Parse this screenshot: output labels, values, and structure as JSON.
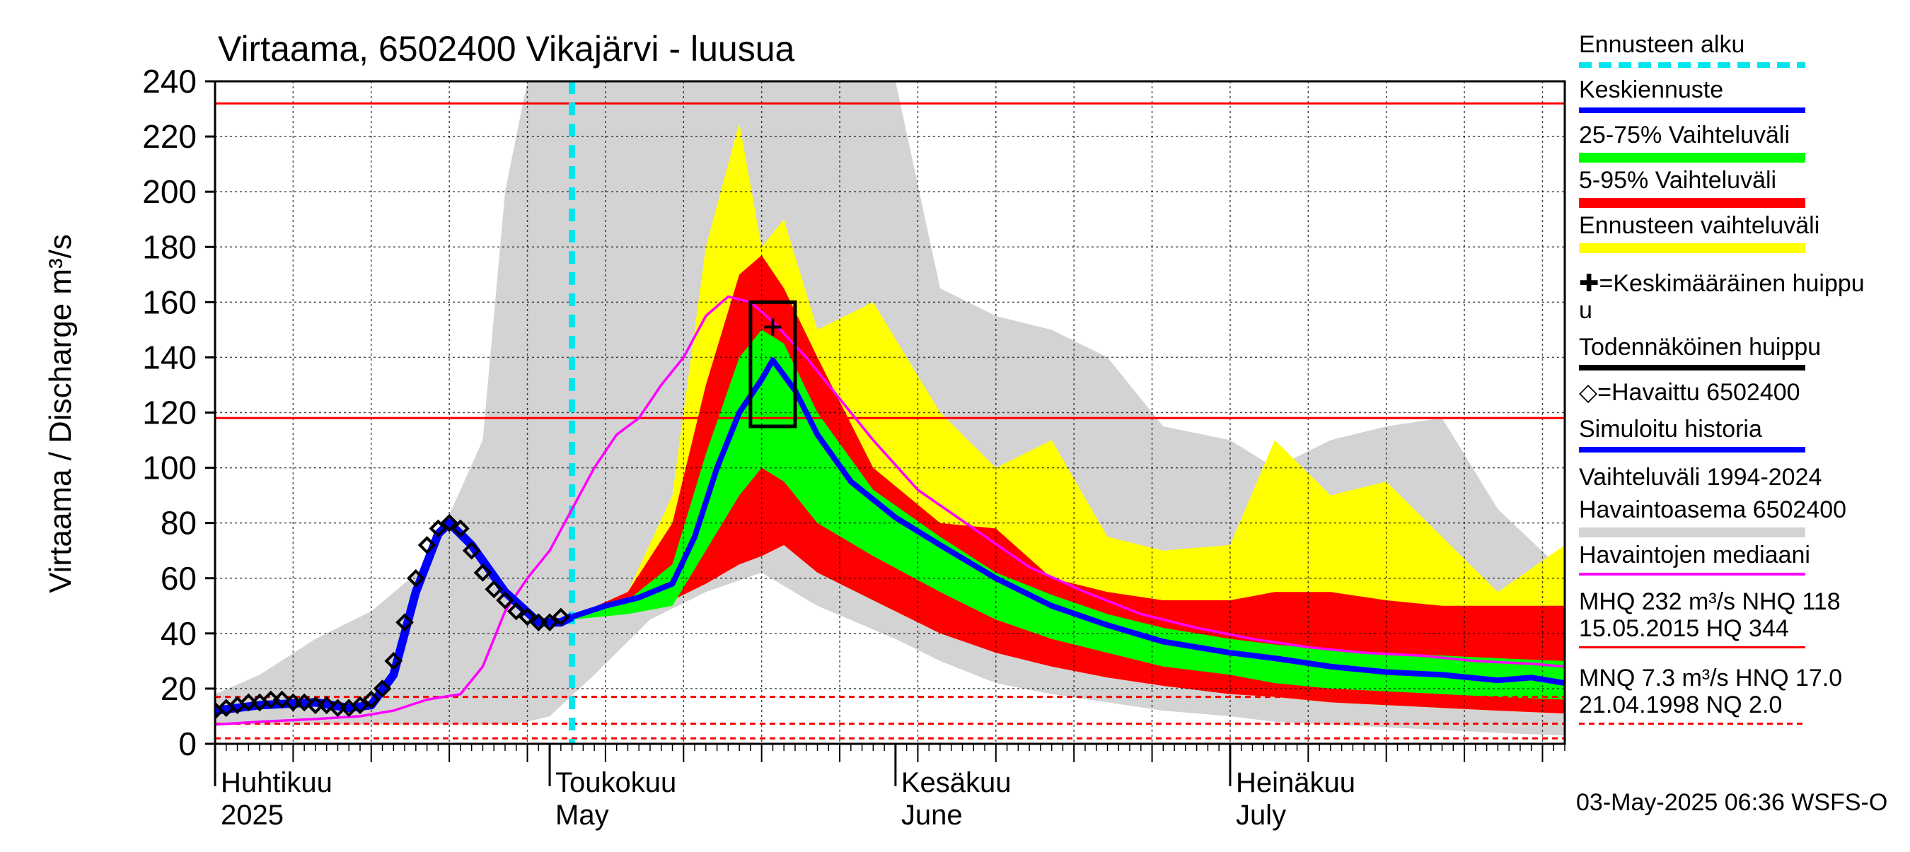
{
  "chart_data": {
    "type": "area",
    "title": "Virtaama, 6502400 Vikajärvi - luusua",
    "ylabel": "Virtaama / Discharge    m³/s",
    "ylim": [
      0,
      240
    ],
    "yticks": [
      0,
      20,
      40,
      60,
      80,
      100,
      120,
      140,
      160,
      180,
      200,
      220,
      240
    ],
    "x_range": [
      "2025-04-01",
      "2025-07-31"
    ],
    "month_labels": [
      {
        "fi": "Huhtikuu",
        "en": "2025",
        "date": "2025-04-01"
      },
      {
        "fi": "Toukokuu",
        "en": "May",
        "date": "2025-05-01"
      },
      {
        "fi": "Kesäkuu",
        "en": "June",
        "date": "2025-06-01"
      },
      {
        "fi": "Heinäkuu",
        "en": "July",
        "date": "2025-07-01"
      }
    ],
    "forecast_start": "2025-05-03",
    "reference_lines": {
      "MHQ": 232,
      "NHQ": 118,
      "HQ": 344,
      "MNQ": 7.3,
      "HNQ": 17.0,
      "NQ": 2.0
    },
    "probable_peak_box": {
      "x0": "2025-05-19",
      "x1": "2025-05-23",
      "y0": 115,
      "y1": 160
    },
    "mean_peak": {
      "x": "2025-05-21",
      "y": 151
    },
    "range_1994_2024": {
      "x": [
        "2025-04-01",
        "2025-04-05",
        "2025-04-10",
        "2025-04-15",
        "2025-04-20",
        "2025-04-25",
        "2025-04-27",
        "2025-04-29",
        "2025-05-01",
        "2025-05-05",
        "2025-05-10",
        "2025-05-15",
        "2025-05-20",
        "2025-05-25",
        "2025-06-01",
        "2025-06-05",
        "2025-06-10",
        "2025-06-15",
        "2025-06-20",
        "2025-06-25",
        "2025-07-01",
        "2025-07-05",
        "2025-07-10",
        "2025-07-15",
        "2025-07-20",
        "2025-07-25",
        "2025-07-31"
      ],
      "upper": [
        18,
        25,
        38,
        48,
        65,
        110,
        200,
        240,
        240,
        240,
        240,
        240,
        240,
        240,
        240,
        165,
        155,
        150,
        140,
        115,
        110,
        100,
        110,
        115,
        118,
        85,
        62
      ],
      "lower": [
        7,
        7,
        7,
        7,
        7,
        7,
        7,
        8,
        10,
        25,
        45,
        55,
        62,
        50,
        38,
        30,
        22,
        18,
        15,
        12,
        10,
        8,
        7,
        6,
        5,
        4,
        3
      ]
    },
    "forecast_range": {
      "x": [
        "2025-05-03",
        "2025-05-08",
        "2025-05-12",
        "2025-05-15",
        "2025-05-18",
        "2025-05-20",
        "2025-05-22",
        "2025-05-25",
        "2025-05-30",
        "2025-06-05",
        "2025-06-10",
        "2025-06-15",
        "2025-06-20",
        "2025-06-25",
        "2025-07-01",
        "2025-07-05",
        "2025-07-10",
        "2025-07-15",
        "2025-07-20",
        "2025-07-25",
        "2025-07-31"
      ],
      "upper": [
        46,
        55,
        90,
        180,
        225,
        180,
        190,
        150,
        160,
        120,
        100,
        110,
        75,
        70,
        72,
        110,
        90,
        95,
        75,
        55,
        72
      ],
      "lower": [
        45,
        48,
        55,
        62,
        68,
        70,
        72,
        65,
        55,
        42,
        35,
        30,
        25,
        22,
        19,
        17,
        15,
        14,
        13,
        12,
        11
      ]
    },
    "band_5_95": {
      "x": [
        "2025-05-03",
        "2025-05-08",
        "2025-05-12",
        "2025-05-15",
        "2025-05-18",
        "2025-05-20",
        "2025-05-22",
        "2025-05-25",
        "2025-05-30",
        "2025-06-05",
        "2025-06-10",
        "2025-06-15",
        "2025-06-20",
        "2025-06-25",
        "2025-07-01",
        "2025-07-05",
        "2025-07-10",
        "2025-07-15",
        "2025-07-20",
        "2025-07-25",
        "2025-07-31"
      ],
      "upper": [
        46,
        55,
        80,
        130,
        170,
        177,
        165,
        140,
        100,
        80,
        78,
        60,
        55,
        52,
        52,
        55,
        55,
        52,
        50,
        50,
        50
      ],
      "lower": [
        45,
        48,
        52,
        58,
        65,
        68,
        72,
        62,
        52,
        40,
        33,
        28,
        24,
        21,
        18,
        17,
        15,
        14,
        13,
        12,
        11
      ]
    },
    "band_25_75": {
      "x": [
        "2025-05-03",
        "2025-05-08",
        "2025-05-12",
        "2025-05-15",
        "2025-05-18",
        "2025-05-20",
        "2025-05-22",
        "2025-05-25",
        "2025-05-30",
        "2025-06-05",
        "2025-06-10",
        "2025-06-15",
        "2025-06-20",
        "2025-06-25",
        "2025-07-01",
        "2025-07-05",
        "2025-07-10",
        "2025-07-15",
        "2025-07-20",
        "2025-07-25",
        "2025-07-31"
      ],
      "upper": [
        46,
        52,
        65,
        105,
        140,
        150,
        145,
        120,
        92,
        75,
        62,
        54,
        47,
        42,
        38,
        36,
        34,
        33,
        32,
        31,
        30
      ],
      "lower": [
        45,
        47,
        50,
        70,
        90,
        100,
        95,
        80,
        68,
        55,
        45,
        38,
        33,
        28,
        25,
        22,
        20,
        19,
        18,
        17,
        16
      ]
    },
    "series": [
      {
        "name": "Keskiennuste",
        "color": "#0000ff",
        "x": [
          "2025-05-03",
          "2025-05-06",
          "2025-05-09",
          "2025-05-12",
          "2025-05-14",
          "2025-05-16",
          "2025-05-18",
          "2025-05-20",
          "2025-05-21",
          "2025-05-23",
          "2025-05-25",
          "2025-05-28",
          "2025-06-01",
          "2025-06-05",
          "2025-06-10",
          "2025-06-15",
          "2025-06-20",
          "2025-06-25",
          "2025-07-01",
          "2025-07-05",
          "2025-07-10",
          "2025-07-15",
          "2025-07-20",
          "2025-07-25",
          "2025-07-28",
          "2025-07-31"
        ],
        "y": [
          46,
          50,
          53,
          58,
          75,
          100,
          120,
          132,
          139,
          128,
          112,
          95,
          82,
          72,
          60,
          50,
          43,
          37,
          33,
          31,
          28,
          26,
          25,
          23,
          24,
          22
        ]
      },
      {
        "name": "Havaittu 6502400",
        "color": "#000000",
        "x": [
          "2025-04-01",
          "2025-04-02",
          "2025-04-03",
          "2025-04-04",
          "2025-04-05",
          "2025-04-06",
          "2025-04-07",
          "2025-04-08",
          "2025-04-09",
          "2025-04-10",
          "2025-04-11",
          "2025-04-12",
          "2025-04-13",
          "2025-04-14",
          "2025-04-15",
          "2025-04-16",
          "2025-04-17",
          "2025-04-18",
          "2025-04-19",
          "2025-04-20",
          "2025-04-21",
          "2025-04-22",
          "2025-04-23",
          "2025-04-24",
          "2025-04-25",
          "2025-04-26",
          "2025-04-27",
          "2025-04-28",
          "2025-04-29",
          "2025-04-30",
          "2025-05-01",
          "2025-05-02"
        ],
        "y": [
          12,
          13,
          14,
          15,
          15,
          16,
          16,
          15,
          15,
          14,
          14,
          13,
          13,
          14,
          16,
          20,
          30,
          44,
          60,
          72,
          78,
          80,
          78,
          70,
          62,
          56,
          52,
          48,
          46,
          44,
          44,
          46
        ]
      },
      {
        "name": "Simuloitu historia",
        "color": "#0000ff",
        "x": [
          "2025-04-01",
          "2025-04-05",
          "2025-04-10",
          "2025-04-13",
          "2025-04-15",
          "2025-04-17",
          "2025-04-19",
          "2025-04-21",
          "2025-04-22",
          "2025-04-24",
          "2025-04-27",
          "2025-04-30",
          "2025-05-02",
          "2025-05-03"
        ],
        "y": [
          12,
          14,
          15,
          13,
          14,
          25,
          55,
          76,
          80,
          72,
          55,
          44,
          44,
          46
        ]
      },
      {
        "name": "Havaintojen mediaani",
        "color": "#ff00ff",
        "x": [
          "2025-04-01",
          "2025-04-05",
          "2025-04-10",
          "2025-04-14",
          "2025-04-17",
          "2025-04-20",
          "2025-04-23",
          "2025-04-25",
          "2025-04-27",
          "2025-04-29",
          "2025-05-01",
          "2025-05-03",
          "2025-05-05",
          "2025-05-07",
          "2025-05-09",
          "2025-05-11",
          "2025-05-13",
          "2025-05-15",
          "2025-05-17",
          "2025-05-19",
          "2025-05-21",
          "2025-05-24",
          "2025-05-27",
          "2025-05-30",
          "2025-06-03",
          "2025-06-08",
          "2025-06-13",
          "2025-06-18",
          "2025-06-23",
          "2025-06-28",
          "2025-07-03",
          "2025-07-08",
          "2025-07-13",
          "2025-07-18",
          "2025-07-23",
          "2025-07-28",
          "2025-07-31"
        ],
        "y": [
          7,
          8,
          9,
          10,
          12,
          16,
          18,
          28,
          48,
          60,
          70,
          85,
          100,
          112,
          118,
          130,
          140,
          155,
          162,
          160,
          153,
          140,
          125,
          110,
          92,
          78,
          64,
          55,
          47,
          42,
          38,
          35,
          33,
          32,
          30,
          29,
          28
        ]
      }
    ],
    "legend": [
      {
        "label": "Ennusteen alku",
        "color": "#00e5ee",
        "style": "dashed"
      },
      {
        "label": "Keskiennuste",
        "color": "#0000ff",
        "style": "line"
      },
      {
        "label": "25-75% Vaihteluväli",
        "color": "#00ff00",
        "style": "band"
      },
      {
        "label": "5-95% Vaihteluväli",
        "color": "#ff0000",
        "style": "band"
      },
      {
        "label": "Ennusteen vaihteluväli",
        "color": "#ffff00",
        "style": "band"
      },
      {
        "label": "✚=Keskimääräinen huippu",
        "color": "#000000",
        "style": "none"
      },
      {
        "label": "u",
        "color": "#000000",
        "style": "none"
      },
      {
        "label": "Todennäköinen huippu",
        "color": "#000000",
        "style": "line"
      },
      {
        "label": "◇=Havaittu 6502400",
        "color": "#000000",
        "style": "none"
      },
      {
        "label": "Simuloitu historia",
        "color": "#0000ff",
        "style": "line"
      },
      {
        "label": "Vaihteluväli 1994-2024",
        "color": "#d3d3d3",
        "style": "none"
      },
      {
        "label": " Havaintoasema 6502400",
        "color": "#d3d3d3",
        "style": "band"
      },
      {
        "label": "Havaintojen mediaani",
        "color": "#ff00ff",
        "style": "line"
      },
      {
        "label": "MHQ  232 m³/s NHQ  118",
        "color": "#000000",
        "style": "none"
      },
      {
        "label": "15.05.2015 HQ  344",
        "color": "#ff0000",
        "style": "line"
      },
      {
        "label": "MNQ  7.3 m³/s HNQ 17.0",
        "color": "#000000",
        "style": "none"
      },
      {
        "label": "21.04.1998 NQ  2.0",
        "color": "#ff0000",
        "style": "dashed"
      }
    ],
    "footer": "03-May-2025 06:36 WSFS-O",
    "colors": {
      "range": "#d3d3d3",
      "forecast_range": "#ffff00",
      "band_5_95": "#ff0000",
      "band_25_75": "#00ff00",
      "ref_line": "#ff0000",
      "forecast_start": "#00e5ee",
      "grid": "#000000"
    }
  }
}
